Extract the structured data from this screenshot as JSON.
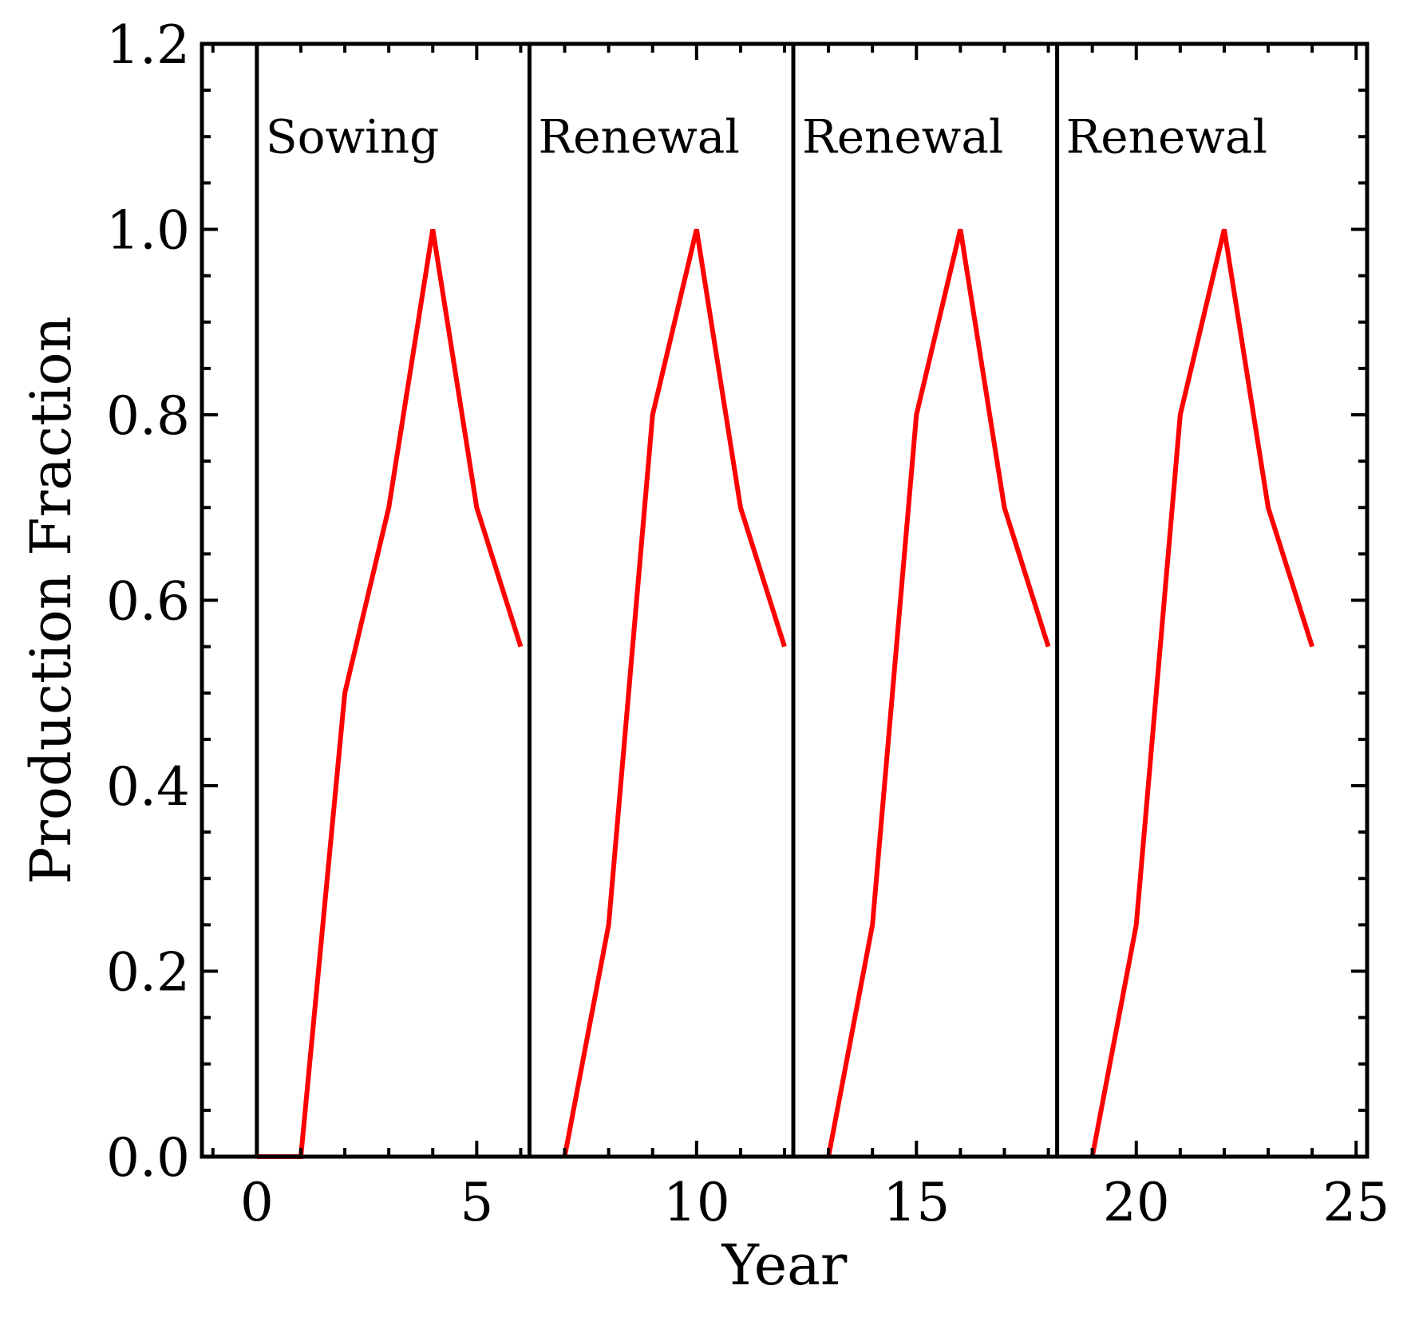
{
  "chart_data": {
    "type": "line",
    "title": "",
    "xlabel": "Year",
    "ylabel": "Production Fraction",
    "xlim": [
      -1.25,
      25.25
    ],
    "ylim": [
      0.0,
      1.2
    ],
    "x_ticks": [
      0,
      5,
      10,
      15,
      20,
      25
    ],
    "x_tick_labels": [
      "0",
      "5",
      "10",
      "15",
      "20",
      "25"
    ],
    "y_ticks": [
      0.0,
      0.2,
      0.4,
      0.6,
      0.8,
      1.0,
      1.2
    ],
    "y_tick_labels": [
      "0.0",
      "0.2",
      "0.4",
      "0.6",
      "0.8",
      "1.0",
      "1.2"
    ],
    "grid": false,
    "line_color": "#ff0000",
    "phase_boundaries": [
      0,
      6.2,
      12.2,
      18.2
    ],
    "phases": [
      {
        "label": "Sowing",
        "x": 0.2
      },
      {
        "label": "Renewal",
        "x": 6.4
      },
      {
        "label": "Renewal",
        "x": 12.4
      },
      {
        "label": "Renewal",
        "x": 18.4
      }
    ],
    "phase_label_y": 1.1,
    "series": [
      {
        "x": [
          0,
          1,
          2,
          3,
          4,
          5,
          6
        ],
        "values": [
          0.0,
          0.0,
          0.5,
          0.7,
          1.0,
          0.7,
          0.55
        ]
      },
      {
        "x": [
          7,
          8,
          9,
          10,
          11,
          12
        ],
        "values": [
          0.0,
          0.25,
          0.8,
          1.0,
          0.7,
          0.55
        ]
      },
      {
        "x": [
          13,
          14,
          15,
          16,
          17,
          18
        ],
        "values": [
          0.0,
          0.25,
          0.8,
          1.0,
          0.7,
          0.55
        ]
      },
      {
        "x": [
          19,
          20,
          21,
          22,
          23,
          24
        ],
        "values": [
          0.0,
          0.25,
          0.8,
          1.0,
          0.7,
          0.55
        ]
      }
    ]
  }
}
